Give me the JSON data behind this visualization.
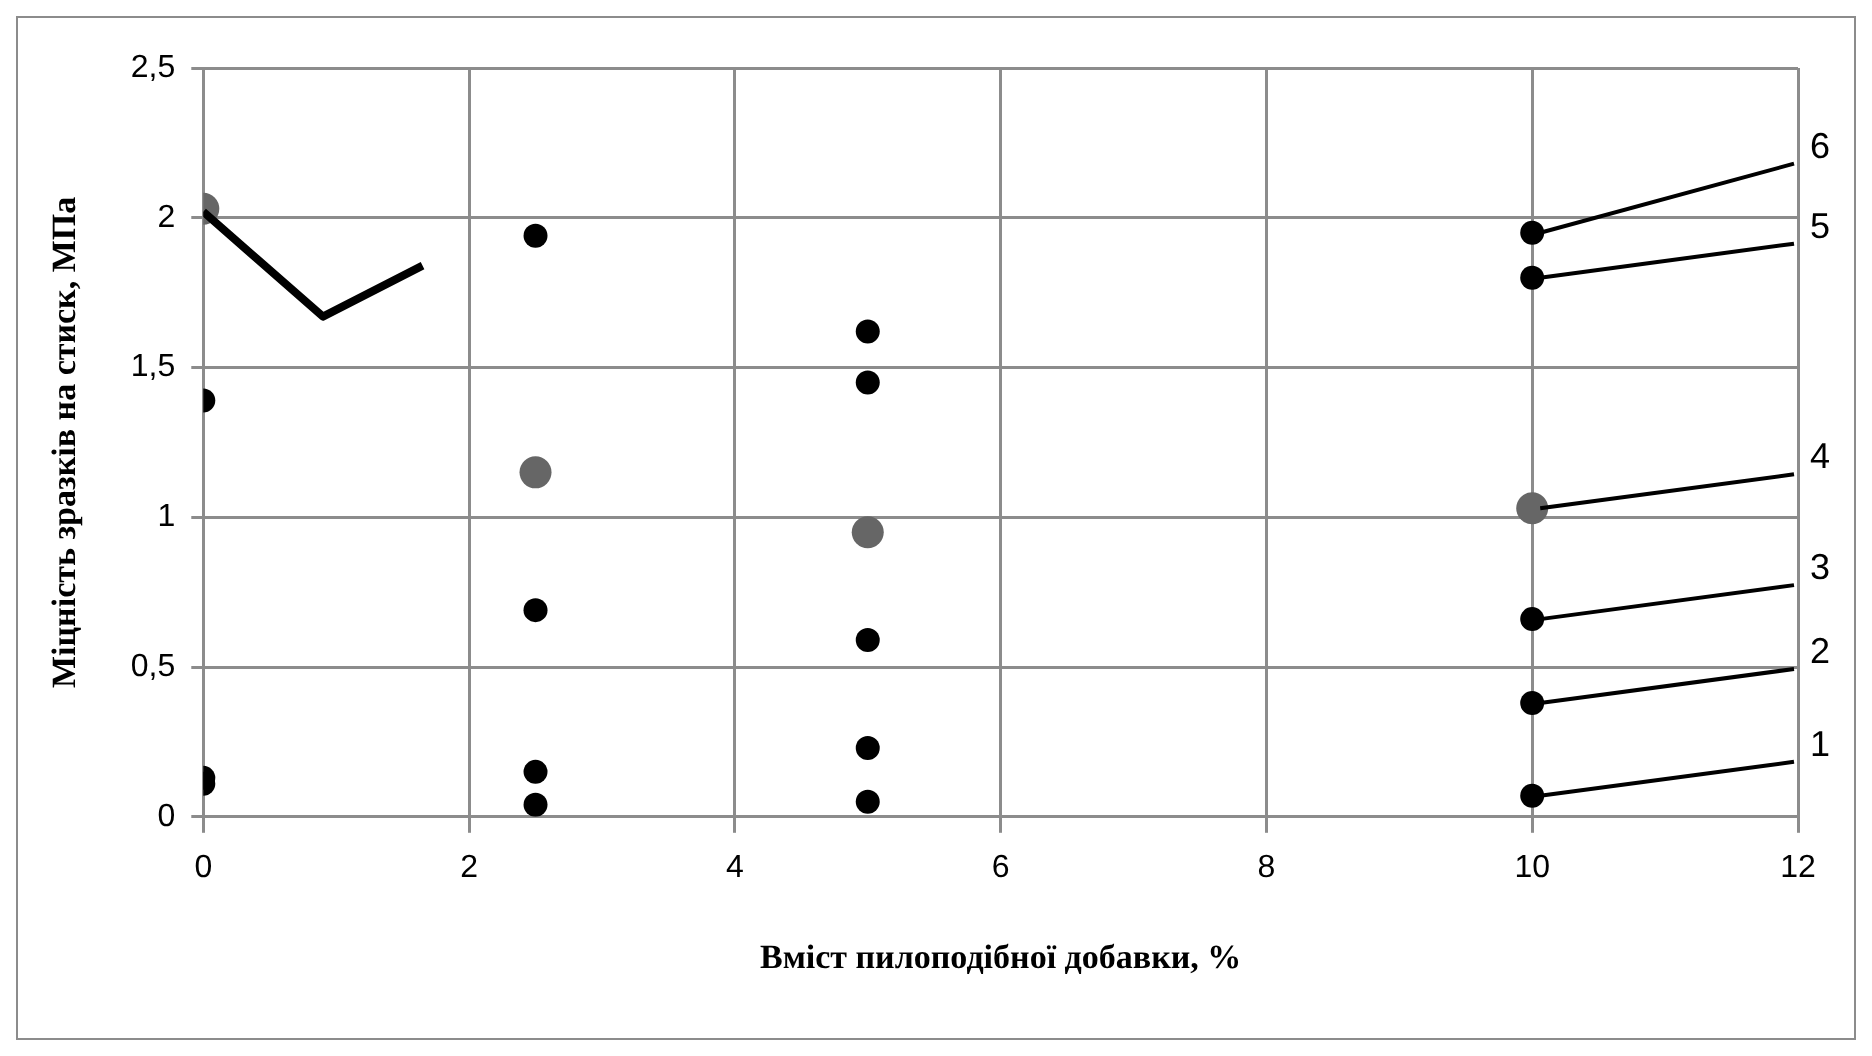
{
  "chart_data": {
    "type": "scatter",
    "xlabel": "Вміст пилоподібної добавки, %",
    "ylabel": "Міцність зразків на стиск, МПа",
    "x": [
      0,
      2.5,
      5,
      10
    ],
    "series": [
      {
        "name": "1",
        "color": "#000000",
        "values": [
          0.11,
          0.04,
          0.05,
          0.07
        ]
      },
      {
        "name": "2",
        "color": "#000000",
        "values": [
          0.13,
          0.15,
          0.23,
          0.38
        ]
      },
      {
        "name": "3",
        "color": "#000000",
        "values": [
          null,
          0.69,
          0.59,
          0.66
        ]
      },
      {
        "name": "4",
        "color": "#666666",
        "values": [
          2.03,
          1.15,
          0.95,
          1.03
        ]
      },
      {
        "name": "5",
        "color": "#000000",
        "values": [
          1.39,
          null,
          1.45,
          1.8
        ]
      },
      {
        "name": "6",
        "color": "#000000",
        "values": [
          null,
          1.94,
          1.62,
          1.95
        ]
      },
      {
        "type": "line",
        "color": "#000000",
        "marker": "none",
        "x": [
          0,
          0.9,
          1.65
        ],
        "values": [
          2.02,
          1.67,
          1.84
        ]
      }
    ],
    "xlim": [
      0,
      12
    ],
    "xticks": [
      0,
      2,
      4,
      6,
      8,
      10,
      12
    ],
    "ylim": [
      0,
      2.5
    ],
    "yticks": [
      0,
      {
        "value": 0.5,
        "label": "0,5"
      },
      1,
      {
        "value": 1.5,
        "label": "1,5"
      },
      2,
      {
        "value": 2.5,
        "label": "2,5"
      }
    ],
    "grid": true,
    "legend": false,
    "marker": "circle"
  }
}
